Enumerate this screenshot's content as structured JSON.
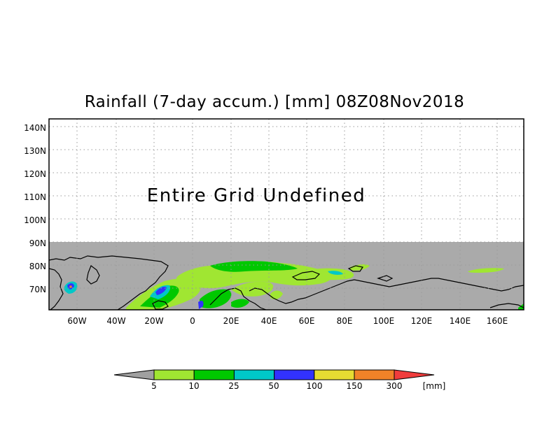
{
  "map": {
    "title": "Rainfall (7-day accum.) [mm] 08Z08Nov2018",
    "overlay_text": "Entire Grid Undefined",
    "lat_labels": [
      "140N",
      "130N",
      "120N",
      "110N",
      "100N",
      "90N",
      "80N",
      "70N"
    ],
    "lon_labels": [
      "60W",
      "40W",
      "20W",
      "0",
      "20E",
      "40E",
      "60E",
      "80E",
      "100E",
      "120E",
      "140E",
      "160E"
    ],
    "undefined_color": "#aaaaaa"
  },
  "colorbar": {
    "unit": "[mm]",
    "labels": [
      "5",
      "10",
      "25",
      "50",
      "100",
      "150",
      "300"
    ],
    "low_color": "#a0a0a0",
    "colors": [
      "#a0e632",
      "#00c800",
      "#00c8c8",
      "#3232ff",
      "#e6dc32",
      "#f08228"
    ],
    "high_color": "#f03c3c"
  }
}
